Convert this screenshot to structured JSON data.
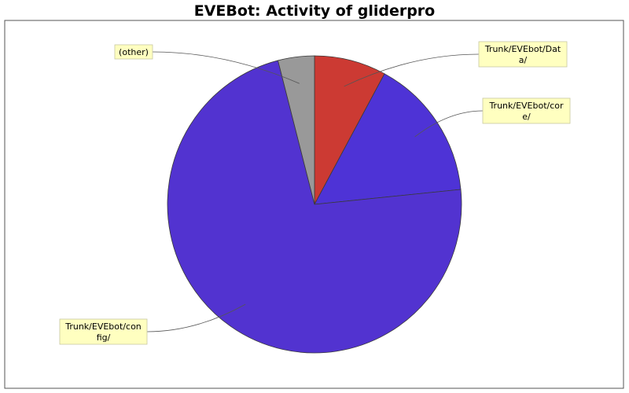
{
  "chart_data": {
    "type": "pie",
    "title": "EVEBot: Activity of gliderpro",
    "slices": [
      {
        "label_lines": [
          "Trunk/EVEbot/Dat",
          "a/"
        ],
        "value": 7.9,
        "color": "#cc3a33"
      },
      {
        "label_lines": [
          "Trunk/EVEbot/cor",
          "e/"
        ],
        "value": 15.5,
        "color": "#4e33d6"
      },
      {
        "label_lines": [
          "Trunk/EVEbot/con",
          "fig/"
        ],
        "value": 72.6,
        "color": "#5233d0"
      },
      {
        "label_lines": [
          "(other)"
        ],
        "value": 4.0,
        "color": "#999999"
      }
    ],
    "start_angle_deg": 0,
    "direction": "clockwise",
    "legend": "none",
    "label_style": "callout boxes with leader lines"
  }
}
